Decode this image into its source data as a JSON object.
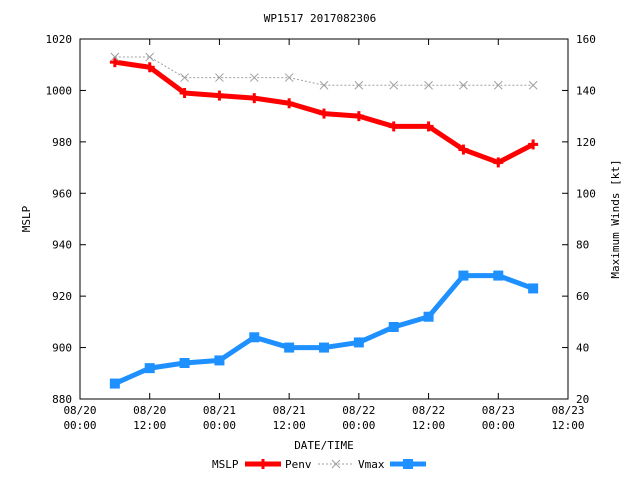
{
  "chart_data": {
    "type": "line",
    "title": "WP1517 2017082306",
    "xlabel": "DATE/TIME",
    "ylabel_left": "MSLP",
    "ylabel_right": "Maximum Winds [kt]",
    "x_ticks": [
      {
        "line1": "08/20",
        "line2": "00:00"
      },
      {
        "line1": "08/20",
        "line2": "12:00"
      },
      {
        "line1": "08/21",
        "line2": "00:00"
      },
      {
        "line1": "08/21",
        "line2": "12:00"
      },
      {
        "line1": "08/22",
        "line2": "00:00"
      },
      {
        "line1": "08/22",
        "line2": "12:00"
      },
      {
        "line1": "08/23",
        "line2": "00:00"
      },
      {
        "line1": "08/23",
        "line2": "12:00"
      }
    ],
    "x_range_hours": [
      0,
      84
    ],
    "y_left": {
      "range": [
        880,
        1020
      ],
      "ticks": [
        880,
        900,
        920,
        940,
        960,
        980,
        1000,
        1020
      ]
    },
    "y_right": {
      "range": [
        20,
        160
      ],
      "ticks": [
        20,
        40,
        60,
        80,
        100,
        120,
        140,
        160
      ]
    },
    "x_hours": [
      6,
      12,
      18,
      24,
      30,
      36,
      42,
      48,
      54,
      60,
      66,
      72,
      78
    ],
    "series": [
      {
        "name": "Penv",
        "axis": "left",
        "color": "#ff0000",
        "style": "thick-solid",
        "marker": "plus",
        "values": [
          1011,
          1009,
          999,
          998,
          997,
          995,
          991,
          990,
          986,
          986,
          977,
          972,
          979
        ]
      },
      {
        "name": "Vmax",
        "axis": "left",
        "color": "#a0a0a0",
        "style": "dotted",
        "marker": "cross",
        "values": [
          1013,
          1013,
          1005,
          1005,
          1005,
          1005,
          1002,
          1002,
          1002,
          1002,
          1002,
          1002,
          1002
        ]
      },
      {
        "axis": "right",
        "color": "#1e90ff",
        "style": "thick-solid",
        "marker": "square",
        "values": [
          26,
          32,
          34,
          35,
          44,
          40,
          40,
          42,
          48,
          52,
          68,
          68,
          63
        ]
      }
    ],
    "legend": {
      "placement": "bottom",
      "entries": [
        {
          "label": "MSLP",
          "series": -1
        },
        {
          "label": "Penv",
          "series": 0
        },
        {
          "label": "Vmax",
          "series": 1
        },
        {
          "label": "",
          "series": 2
        }
      ]
    },
    "grid": false
  }
}
